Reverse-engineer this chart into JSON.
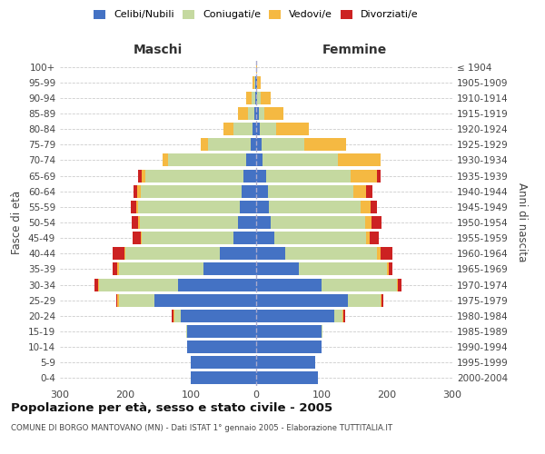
{
  "age_groups": [
    "0-4",
    "5-9",
    "10-14",
    "15-19",
    "20-24",
    "25-29",
    "30-34",
    "35-39",
    "40-44",
    "45-49",
    "50-54",
    "55-59",
    "60-64",
    "65-69",
    "70-74",
    "75-79",
    "80-84",
    "85-89",
    "90-94",
    "95-99",
    "100+"
  ],
  "birth_years": [
    "2000-2004",
    "1995-1999",
    "1990-1994",
    "1985-1989",
    "1980-1984",
    "1975-1979",
    "1970-1974",
    "1965-1969",
    "1960-1964",
    "1955-1959",
    "1950-1954",
    "1945-1949",
    "1940-1944",
    "1935-1939",
    "1930-1934",
    "1925-1929",
    "1920-1924",
    "1915-1919",
    "1910-1914",
    "1905-1909",
    "≤ 1904"
  ],
  "male_celibi": [
    100,
    100,
    105,
    105,
    115,
    155,
    120,
    80,
    55,
    35,
    28,
    25,
    22,
    20,
    15,
    8,
    5,
    3,
    2,
    1,
    0
  ],
  "male_coniugati": [
    0,
    0,
    0,
    2,
    10,
    55,
    120,
    130,
    145,
    140,
    150,
    155,
    155,
    150,
    120,
    65,
    30,
    10,
    5,
    2,
    0
  ],
  "male_vedovi": [
    0,
    0,
    0,
    0,
    2,
    2,
    2,
    2,
    2,
    2,
    2,
    3,
    5,
    5,
    8,
    12,
    15,
    15,
    8,
    3,
    0
  ],
  "male_divorziati": [
    0,
    0,
    0,
    0,
    2,
    2,
    5,
    8,
    18,
    12,
    10,
    8,
    5,
    5,
    0,
    0,
    0,
    0,
    0,
    0,
    0
  ],
  "female_celibi": [
    95,
    90,
    100,
    100,
    120,
    140,
    100,
    65,
    45,
    28,
    22,
    20,
    18,
    15,
    10,
    8,
    5,
    4,
    2,
    1,
    0
  ],
  "female_coniugati": [
    0,
    0,
    0,
    2,
    12,
    50,
    115,
    135,
    140,
    140,
    145,
    140,
    130,
    130,
    115,
    65,
    25,
    8,
    5,
    1,
    0
  ],
  "female_vedovi": [
    0,
    0,
    0,
    0,
    2,
    2,
    2,
    3,
    5,
    5,
    10,
    15,
    20,
    40,
    65,
    65,
    50,
    30,
    15,
    5,
    2
  ],
  "female_divorziati": [
    0,
    0,
    0,
    0,
    2,
    2,
    5,
    5,
    18,
    15,
    15,
    10,
    10,
    5,
    0,
    0,
    0,
    0,
    0,
    0,
    0
  ],
  "color_celibi": "#4472c4",
  "color_coniugati": "#c5d9a0",
  "color_vedovi": "#f5b942",
  "color_divorziati": "#cc2222",
  "title": "Popolazione per età, sesso e stato civile - 2005",
  "subtitle": "COMUNE DI BORGO MANTOVANO (MN) - Dati ISTAT 1° gennaio 2005 - Elaborazione TUTTITALIA.IT",
  "xlabel_left": "Maschi",
  "xlabel_right": "Femmine",
  "ylabel_left": "Fasce di età",
  "ylabel_right": "Anni di nascita",
  "xlim": 300,
  "background_color": "#ffffff",
  "grid_color": "#cccccc"
}
